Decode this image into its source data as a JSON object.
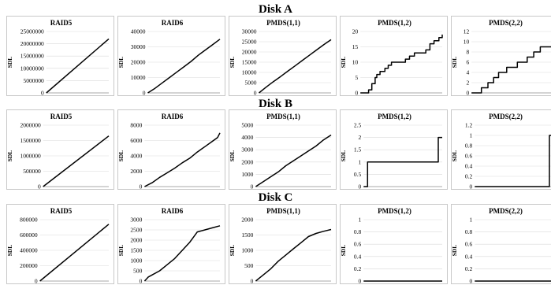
{
  "chart_data": [
    {
      "disk": "Disk A",
      "panels": [
        {
          "title": "RAID5",
          "type": "line",
          "ylabel": "SDL",
          "ylim": [
            0,
            25000000
          ],
          "yticks": [
            0,
            5000000,
            10000000,
            15000000,
            20000000,
            25000000
          ],
          "ytick_labels": [
            "0",
            "5000000",
            "10000000",
            "15000000",
            "20000000",
            "25000000"
          ],
          "series": [
            {
              "x": [
                0,
                1
              ],
              "y": [
                0,
                22000000
              ]
            }
          ]
        },
        {
          "title": "RAID6",
          "type": "line",
          "ylabel": "SDL",
          "ylim": [
            0,
            40000
          ],
          "yticks": [
            0,
            10000,
            20000,
            30000,
            40000
          ],
          "ytick_labels": [
            "0",
            "10000",
            "20000",
            "30000",
            "40000"
          ],
          "series": [
            {
              "x": [
                0,
                0.1,
                0.2,
                0.3,
                0.4,
                0.5,
                0.6,
                0.7,
                0.8,
                0.9,
                1
              ],
              "y": [
                0,
                3000,
                6500,
                10000,
                13500,
                17000,
                20500,
                24500,
                28000,
                31500,
                35000
              ]
            }
          ]
        },
        {
          "title": "PMDS(1,1)",
          "type": "line",
          "ylabel": "SDL",
          "ylim": [
            0,
            30000
          ],
          "yticks": [
            0,
            5000,
            10000,
            15000,
            20000,
            25000,
            30000
          ],
          "ytick_labels": [
            "0",
            "5000",
            "10000",
            "15000",
            "20000",
            "25000",
            "30000"
          ],
          "series": [
            {
              "x": [
                0,
                0.1,
                0.2,
                0.3,
                0.4,
                0.5,
                0.6,
                0.7,
                0.8,
                0.9,
                1
              ],
              "y": [
                0,
                2800,
                5500,
                8000,
                10600,
                13200,
                15800,
                18400,
                21000,
                23600,
                26000
              ]
            }
          ]
        },
        {
          "title": "PMDS(1,2)",
          "type": "line",
          "ylabel": "SDL",
          "ylim": [
            0,
            20
          ],
          "yticks": [
            0,
            5,
            10,
            15,
            20
          ],
          "ytick_labels": [
            "0",
            "5",
            "10",
            "15",
            "20"
          ],
          "series": [
            {
              "x": [
                0,
                0.06,
                0.1,
                0.14,
                0.18,
                0.2,
                0.24,
                0.3,
                0.34,
                0.38,
                0.4,
                0.44,
                0.55,
                0.6,
                0.66,
                0.7,
                0.8,
                0.85,
                0.9,
                0.96,
                1
              ],
              "y": [
                0,
                0,
                1,
                3,
                5,
                6,
                7,
                8,
                9,
                10,
                10,
                10,
                11,
                12,
                13,
                13,
                14,
                16,
                17,
                18,
                19
              ]
            }
          ]
        },
        {
          "title": "PMDS(2,2)",
          "type": "line",
          "ylabel": "SDL",
          "ylim": [
            0,
            12
          ],
          "yticks": [
            0,
            2,
            4,
            6,
            8,
            10,
            12
          ],
          "ytick_labels": [
            "0",
            "2",
            "4",
            "6",
            "8",
            "10",
            "12"
          ],
          "series": [
            {
              "x": [
                0,
                0.07,
                0.12,
                0.2,
                0.27,
                0.33,
                0.43,
                0.56,
                0.68,
                0.76,
                0.84,
                1
              ],
              "y": [
                0,
                0,
                1,
                2,
                3,
                4,
                5,
                6,
                7,
                8,
                9,
                10
              ]
            }
          ]
        }
      ]
    },
    {
      "disk": "Disk B",
      "panels": [
        {
          "title": "RAID5",
          "type": "line",
          "ylabel": "SDL",
          "ylim": [
            0,
            2000000
          ],
          "yticks": [
            0,
            500000,
            1000000,
            1500000,
            2000000
          ],
          "ytick_labels": [
            "0",
            "500000",
            "1000000",
            "1500000",
            "2000000"
          ],
          "series": [
            {
              "x": [
                0,
                1
              ],
              "y": [
                0,
                1650000
              ]
            }
          ]
        },
        {
          "title": "RAID6",
          "type": "line",
          "ylabel": "SDL",
          "ylim": [
            0,
            8000
          ],
          "yticks": [
            0,
            2000,
            4000,
            6000,
            8000
          ],
          "ytick_labels": [
            "0",
            "2000",
            "4000",
            "6000",
            "8000"
          ],
          "series": [
            {
              "x": [
                0,
                0.1,
                0.2,
                0.3,
                0.4,
                0.5,
                0.6,
                0.7,
                0.8,
                0.9,
                0.97,
                1
              ],
              "y": [
                0,
                500,
                1200,
                1800,
                2400,
                3100,
                3700,
                4500,
                5200,
                5900,
                6400,
                7000
              ]
            }
          ]
        },
        {
          "title": "PMDS(1,1)",
          "type": "line",
          "ylabel": "SDL",
          "ylim": [
            0,
            5000
          ],
          "yticks": [
            0,
            1000,
            2000,
            3000,
            4000,
            5000
          ],
          "ytick_labels": [
            "0",
            "1000",
            "2000",
            "3000",
            "4000",
            "5000"
          ],
          "series": [
            {
              "x": [
                0,
                0.1,
                0.2,
                0.3,
                0.4,
                0.5,
                0.6,
                0.7,
                0.8,
                0.9,
                1
              ],
              "y": [
                0,
                400,
                800,
                1200,
                1700,
                2100,
                2500,
                2900,
                3300,
                3800,
                4200
              ]
            }
          ]
        },
        {
          "title": "PMDS(1,2)",
          "type": "line",
          "ylabel": "SDL",
          "ylim": [
            0,
            2.5
          ],
          "yticks": [
            0,
            0.5,
            1,
            1.5,
            2,
            2.5
          ],
          "ytick_labels": [
            "0",
            "0.5",
            "1",
            "1.5",
            "2",
            "2.5"
          ],
          "series": [
            {
              "x": [
                0,
                0.05,
                0.05,
                0.95,
                0.95,
                1
              ],
              "y": [
                0,
                0,
                1,
                1,
                2,
                2
              ]
            }
          ]
        },
        {
          "title": "PMDS(2,2)",
          "type": "line",
          "ylabel": "SDL",
          "ylim": [
            0,
            1.2
          ],
          "yticks": [
            0,
            0.2,
            0.4,
            0.6,
            0.8,
            1,
            1.2
          ],
          "ytick_labels": [
            "0",
            "0.2",
            "0.4",
            "0.6",
            "0.8",
            "1",
            "1.2"
          ],
          "series": [
            {
              "x": [
                0,
                0.95,
                0.95,
                1
              ],
              "y": [
                0,
                0,
                1,
                1
              ]
            }
          ]
        }
      ]
    },
    {
      "disk": "Disk C",
      "panels": [
        {
          "title": "RAID5",
          "type": "line",
          "ylabel": "SDL",
          "ylim": [
            0,
            800000
          ],
          "yticks": [
            0,
            200000,
            400000,
            600000,
            800000
          ],
          "ytick_labels": [
            "0",
            "200000",
            "400000",
            "600000",
            "800000"
          ],
          "series": [
            {
              "x": [
                0,
                1
              ],
              "y": [
                0,
                740000
              ]
            }
          ]
        },
        {
          "title": "RAID6",
          "type": "line",
          "ylabel": "SDL",
          "ylim": [
            0,
            3000
          ],
          "yticks": [
            0,
            500,
            1000,
            1500,
            2000,
            2500,
            3000
          ],
          "ytick_labels": [
            "0",
            "500",
            "1000",
            "1500",
            "2000",
            "2500",
            "3000"
          ],
          "series": [
            {
              "x": [
                0,
                0.05,
                0.1,
                0.2,
                0.3,
                0.4,
                0.5,
                0.6,
                0.66,
                0.7,
                0.8,
                0.9,
                1
              ],
              "y": [
                0,
                200,
                300,
                500,
                800,
                1100,
                1500,
                1900,
                2200,
                2400,
                2500,
                2600,
                2700
              ]
            }
          ]
        },
        {
          "title": "PMDS(1,1)",
          "type": "line",
          "ylabel": "SDL",
          "ylim": [
            0,
            2000
          ],
          "yticks": [
            0,
            500,
            1000,
            1500,
            2000
          ],
          "ytick_labels": [
            "0",
            "500",
            "1000",
            "1500",
            "2000"
          ],
          "series": [
            {
              "x": [
                0,
                0.05,
                0.1,
                0.2,
                0.3,
                0.4,
                0.5,
                0.6,
                0.7,
                0.8,
                0.9,
                1
              ],
              "y": [
                0,
                100,
                200,
                400,
                650,
                850,
                1050,
                1250,
                1450,
                1550,
                1620,
                1680
              ]
            }
          ]
        },
        {
          "title": "PMDS(1,2)",
          "type": "line",
          "ylabel": "SDL",
          "ylim": [
            0,
            1
          ],
          "yticks": [
            0,
            0.2,
            0.4,
            0.6,
            0.8,
            1
          ],
          "ytick_labels": [
            "0",
            "0.2",
            "0.4",
            "0.6",
            "0.8",
            "1"
          ],
          "series": [
            {
              "x": [
                0,
                1
              ],
              "y": [
                0,
                0
              ]
            }
          ]
        },
        {
          "title": "PMDS(2,2)",
          "type": "line",
          "ylabel": "SDL",
          "ylim": [
            0,
            1
          ],
          "yticks": [
            0,
            0.2,
            0.4,
            0.6,
            0.8,
            1
          ],
          "ytick_labels": [
            "0",
            "0.2",
            "0.4",
            "0.6",
            "0.8",
            "1"
          ],
          "series": [
            {
              "x": [
                0,
                1
              ],
              "y": [
                0,
                0
              ]
            }
          ]
        }
      ]
    }
  ]
}
